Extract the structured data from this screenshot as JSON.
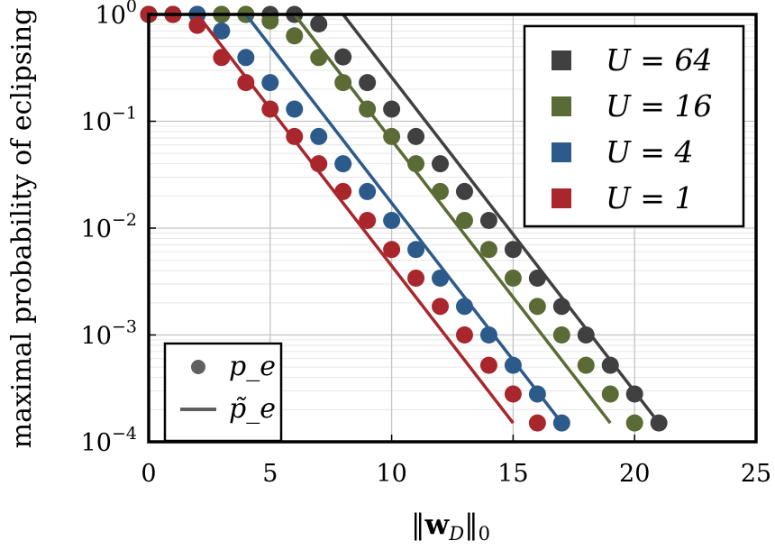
{
  "chart_data": {
    "type": "line",
    "scale": {
      "y": "log"
    },
    "xlabel": "‖w_D‖_0",
    "ylabel": "maximal probability of eclipsing",
    "xlim": [
      0,
      25
    ],
    "ylim": [
      0.0001,
      1
    ],
    "xticks": [
      0,
      5,
      10,
      15,
      20,
      25
    ],
    "yticks": [
      {
        "value": 1,
        "base": "10",
        "exp": "0"
      },
      {
        "value": 0.1,
        "base": "10",
        "exp": "−1"
      },
      {
        "value": 0.01,
        "base": "10",
        "exp": "−2"
      },
      {
        "value": 0.001,
        "base": "10",
        "exp": "−3"
      },
      {
        "value": 0.0001,
        "base": "10",
        "exp": "−4"
      }
    ],
    "grid": true,
    "series": [
      {
        "name": "U = 64",
        "color": "#404040",
        "points": [
          [
            0,
            1
          ],
          [
            1,
            1
          ],
          [
            2,
            1
          ],
          [
            3,
            1
          ],
          [
            4,
            1
          ],
          [
            5,
            1
          ],
          [
            6,
            1
          ],
          [
            7,
            0.815
          ],
          [
            8,
            0.4
          ],
          [
            9,
            0.23
          ],
          [
            10,
            0.13
          ],
          [
            11,
            0.072
          ],
          [
            12,
            0.04
          ],
          [
            13,
            0.022
          ],
          [
            14,
            0.0118
          ],
          [
            15,
            0.0063
          ],
          [
            16,
            0.0034
          ],
          [
            17,
            0.00185
          ],
          [
            18,
            0.001
          ],
          [
            19,
            0.00052
          ],
          [
            20,
            0.00028
          ],
          [
            21,
            0.00015
          ]
        ],
        "fit": [
          [
            8,
            1
          ],
          [
            21,
            0.00015
          ]
        ]
      },
      {
        "name": "U = 16",
        "color": "#5a6b35",
        "points": [
          [
            0,
            1
          ],
          [
            1,
            1
          ],
          [
            2,
            1
          ],
          [
            3,
            1
          ],
          [
            4,
            1
          ],
          [
            5,
            0.87
          ],
          [
            6,
            0.63
          ],
          [
            7,
            0.395
          ],
          [
            8,
            0.23
          ],
          [
            9,
            0.13
          ],
          [
            10,
            0.072
          ],
          [
            11,
            0.04
          ],
          [
            12,
            0.022
          ],
          [
            13,
            0.0118
          ],
          [
            14,
            0.0063
          ],
          [
            15,
            0.0034
          ],
          [
            16,
            0.00185
          ],
          [
            17,
            0.001
          ],
          [
            18,
            0.00052
          ],
          [
            19,
            0.00028
          ],
          [
            20,
            0.00015
          ]
        ],
        "fit": [
          [
            6,
            1
          ],
          [
            19,
            0.00015
          ]
        ]
      },
      {
        "name": "U = 4",
        "color": "#2c5a8a",
        "points": [
          [
            0,
            1
          ],
          [
            1,
            1
          ],
          [
            2,
            1
          ],
          [
            3,
            0.7
          ],
          [
            4,
            0.395
          ],
          [
            5,
            0.23
          ],
          [
            6,
            0.13
          ],
          [
            7,
            0.072
          ],
          [
            8,
            0.04
          ],
          [
            9,
            0.022
          ],
          [
            10,
            0.0118
          ],
          [
            11,
            0.0063
          ],
          [
            12,
            0.0034
          ],
          [
            13,
            0.00185
          ],
          [
            14,
            0.001
          ],
          [
            15,
            0.00052
          ],
          [
            16,
            0.00028
          ],
          [
            17,
            0.00015
          ]
        ],
        "fit": [
          [
            4,
            1
          ],
          [
            17,
            0.00015
          ]
        ]
      },
      {
        "name": "U = 1",
        "color": "#a8262c",
        "points": [
          [
            0,
            1
          ],
          [
            1,
            1
          ],
          [
            2,
            0.79
          ],
          [
            3,
            0.395
          ],
          [
            4,
            0.23
          ],
          [
            5,
            0.13
          ],
          [
            6,
            0.072
          ],
          [
            7,
            0.04
          ],
          [
            8,
            0.022
          ],
          [
            9,
            0.0118
          ],
          [
            10,
            0.0063
          ],
          [
            11,
            0.0034
          ],
          [
            12,
            0.00185
          ],
          [
            13,
            0.001
          ],
          [
            14,
            0.00052
          ],
          [
            15,
            0.00028
          ],
          [
            16,
            0.00015
          ]
        ],
        "fit": [
          [
            2,
            1
          ],
          [
            15,
            0.00015
          ]
        ]
      }
    ],
    "legend_series": {
      "placement": "top-right",
      "entries": [
        {
          "label": "U = 64",
          "color": "#404040"
        },
        {
          "label": "U = 16",
          "color": "#5a6b35"
        },
        {
          "label": "U = 4",
          "color": "#2c5a8a"
        },
        {
          "label": "U = 1",
          "color": "#a8262c"
        }
      ]
    },
    "legend_markers": {
      "placement": "bottom-left",
      "entries": [
        {
          "label": "p_e",
          "marker": "dot",
          "color": "#606060"
        },
        {
          "label": "p̃_e",
          "marker": "line",
          "color": "#606060"
        }
      ]
    }
  }
}
